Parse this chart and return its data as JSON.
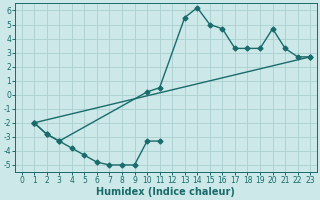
{
  "bg_color": "#cce8e8",
  "grid_color": "#b8d8d8",
  "line_color": "#1a6b6b",
  "marker": "D",
  "markersize": 2.5,
  "linewidth": 1.0,
  "xlabel": "Humidex (Indice chaleur)",
  "xlim": [
    -0.5,
    23.5
  ],
  "ylim": [
    -5.5,
    6.5
  ],
  "xticks": [
    0,
    1,
    2,
    3,
    4,
    5,
    6,
    7,
    8,
    9,
    10,
    11,
    12,
    13,
    14,
    15,
    16,
    17,
    18,
    19,
    20,
    21,
    22,
    23
  ],
  "yticks": [
    -5,
    -4,
    -3,
    -2,
    -1,
    0,
    1,
    2,
    3,
    4,
    5,
    6
  ],
  "line1_x": [
    1,
    2,
    3,
    10,
    11,
    13,
    14,
    15,
    16,
    17,
    18,
    19,
    20,
    21,
    22,
    23
  ],
  "line1_y": [
    -2.0,
    -2.8,
    -3.3,
    0.2,
    0.5,
    5.5,
    6.2,
    5.0,
    4.7,
    3.3,
    3.3,
    3.3,
    4.7,
    3.3,
    2.7,
    2.7
  ],
  "line2_x": [
    1,
    23
  ],
  "line2_y": [
    -2.0,
    2.7
  ],
  "line3_x": [
    1,
    2,
    3,
    4,
    5,
    6,
    7,
    8,
    9,
    10,
    11
  ],
  "line3_y": [
    -2.0,
    -2.8,
    -3.3,
    -3.8,
    -4.3,
    -4.8,
    -5.0,
    -5.0,
    -5.0,
    -3.3,
    -3.3
  ],
  "tick_fontsize": 5.5,
  "label_fontsize": 7,
  "label_fontweight": "bold"
}
